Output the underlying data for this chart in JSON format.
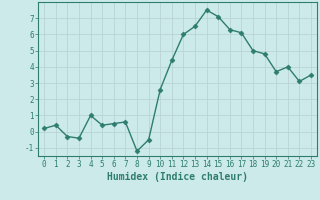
{
  "x": [
    0,
    1,
    2,
    3,
    4,
    5,
    6,
    7,
    8,
    9,
    10,
    11,
    12,
    13,
    14,
    15,
    16,
    17,
    18,
    19,
    20,
    21,
    22,
    23
  ],
  "y": [
    0.2,
    0.4,
    -0.3,
    -0.4,
    1.0,
    0.4,
    0.5,
    0.6,
    -1.2,
    -0.5,
    2.6,
    4.4,
    6.0,
    6.5,
    7.5,
    7.1,
    6.3,
    6.1,
    5.0,
    4.8,
    3.7,
    4.0,
    3.1,
    3.5
  ],
  "line_color": "#2e7d6e",
  "marker": "D",
  "marker_size": 2.5,
  "bg_color": "#cceaea",
  "grid_color": "#b8d4d4",
  "axis_color": "#2e7d6e",
  "xlabel": "Humidex (Indice chaleur)",
  "ylim": [
    -1.5,
    8.0
  ],
  "xlim": [
    -0.5,
    23.5
  ],
  "yticks": [
    -1,
    0,
    1,
    2,
    3,
    4,
    5,
    6,
    7
  ],
  "xticks": [
    0,
    1,
    2,
    3,
    4,
    5,
    6,
    7,
    8,
    9,
    10,
    11,
    12,
    13,
    14,
    15,
    16,
    17,
    18,
    19,
    20,
    21,
    22,
    23
  ],
  "tick_fontsize": 5.5,
  "xlabel_fontsize": 7.0,
  "linewidth": 1.0
}
